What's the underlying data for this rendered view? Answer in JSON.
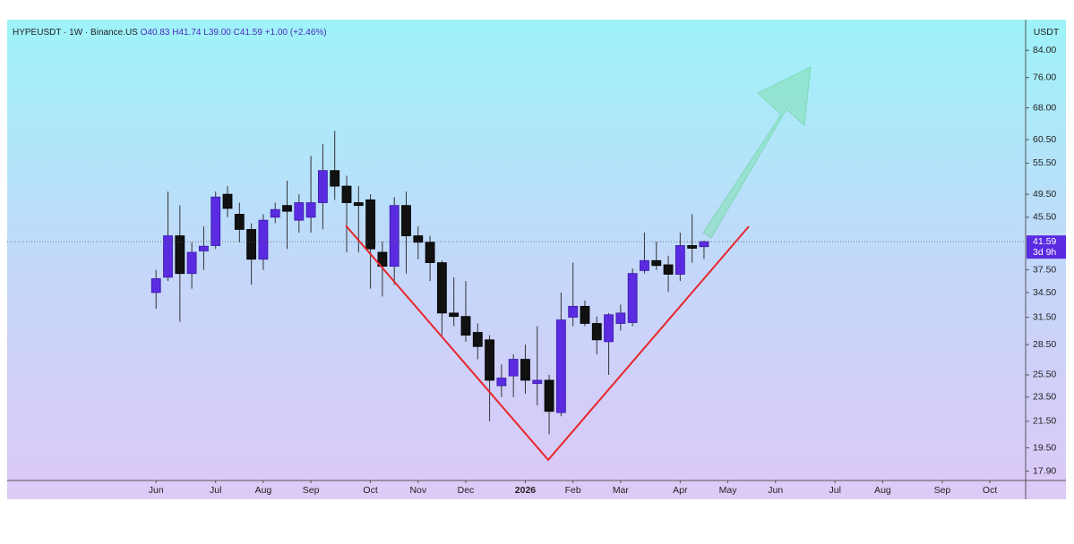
{
  "chart_data": {
    "type": "candlestick",
    "header": {
      "symbol": "HYPEUSDT · 1W · Binance.US",
      "open": "O40.83",
      "high": "H41.74",
      "low": "L39.00",
      "close": "C41.59",
      "change": "+1.00 (+2.46%)"
    },
    "y_axis_label": "USDT",
    "log_scale": true,
    "up_color": "#5a2be0",
    "down_color": "#111111",
    "ylim": [
      17.3,
      94
    ],
    "yticks": [
      {
        "value": 84,
        "label": "84.00"
      },
      {
        "value": 76,
        "label": "76.00"
      },
      {
        "value": 68,
        "label": "68.00"
      },
      {
        "value": 60.5,
        "label": "60.50"
      },
      {
        "value": 55.5,
        "label": "55.50"
      },
      {
        "value": 49.5,
        "label": "49.50"
      },
      {
        "value": 45.5,
        "label": "45.50"
      },
      {
        "value": 37.5,
        "label": "37.50"
      },
      {
        "value": 34.5,
        "label": "34.50"
      },
      {
        "value": 31.5,
        "label": "31.50"
      },
      {
        "value": 28.5,
        "label": "28.50"
      },
      {
        "value": 25.5,
        "label": "25.50"
      },
      {
        "value": 23.5,
        "label": "23.50"
      },
      {
        "value": 21.5,
        "label": "21.50"
      },
      {
        "value": 19.5,
        "label": "19.50"
      },
      {
        "value": 17.9,
        "label": "17.90"
      }
    ],
    "last_price": {
      "value": 41.59,
      "label": "41.59",
      "countdown": "3d 9h"
    },
    "xlim": [
      -12.5,
      73
    ],
    "xticks": [
      {
        "value": 0,
        "label": "Jun"
      },
      {
        "value": 5,
        "label": "Jul"
      },
      {
        "value": 9,
        "label": "Aug"
      },
      {
        "value": 13,
        "label": "Sep"
      },
      {
        "value": 18,
        "label": "Oct"
      },
      {
        "value": 22,
        "label": "Nov"
      },
      {
        "value": 26,
        "label": "Dec"
      },
      {
        "value": 31,
        "label": "2026"
      },
      {
        "value": 35,
        "label": "Feb"
      },
      {
        "value": 39,
        "label": "Mar"
      },
      {
        "value": 44,
        "label": "Apr"
      },
      {
        "value": 48,
        "label": "May"
      },
      {
        "value": 52,
        "label": "Jun"
      },
      {
        "value": 57,
        "label": "Jul"
      },
      {
        "value": 61,
        "label": "Aug"
      },
      {
        "value": 66,
        "label": "Sep"
      },
      {
        "value": 70,
        "label": "Oct"
      }
    ],
    "open": [
      34.5,
      36.5,
      42.5,
      37,
      40.2,
      41,
      49.5,
      46,
      43.5,
      39,
      45.5,
      47.5,
      45,
      45.5,
      48,
      54,
      51,
      48,
      48.5,
      40,
      38,
      47.5,
      42.5,
      41.5,
      38.5,
      32,
      31.6,
      29.8,
      29,
      24.5,
      25.4,
      27,
      24.7,
      25,
      22.2,
      31.5,
      32.8,
      30.8,
      28.8,
      30.8,
      30.9,
      37.4,
      38.8,
      38.2,
      36.9,
      41,
      40.83
    ],
    "high": [
      37.5,
      50,
      47.5,
      41.5,
      44,
      50,
      51,
      48,
      44.5,
      46,
      48,
      52,
      49.5,
      57,
      59.5,
      62.5,
      53,
      51,
      49.5,
      41.6,
      49,
      50,
      44,
      42.5,
      38.8,
      36.5,
      36,
      30.8,
      29.5,
      26.5,
      27.5,
      28.5,
      30.5,
      25.5,
      34.5,
      38.5,
      33.5,
      31.6,
      32,
      33,
      37.7,
      43,
      41.6,
      39.5,
      43,
      46,
      41.74
    ],
    "low": [
      32.5,
      36,
      31,
      35,
      37.5,
      40.5,
      45.5,
      41.5,
      35.5,
      37.5,
      44.5,
      40.5,
      43,
      43,
      43.5,
      48.5,
      40,
      40,
      35,
      34,
      35.5,
      37,
      39,
      36,
      29.5,
      30.5,
      28.8,
      27,
      21.5,
      23.5,
      23.5,
      23.8,
      22.8,
      20.5,
      21.9,
      30.5,
      30.5,
      27.5,
      25.5,
      30,
      30.5,
      37,
      37.5,
      34.6,
      36,
      38.5,
      39.0
    ],
    "close": [
      36.3,
      42.5,
      37,
      40,
      40.9,
      49,
      47,
      43.5,
      39,
      45,
      46.8,
      46.5,
      48,
      48,
      54,
      51,
      48,
      47.5,
      40.5,
      38,
      47.5,
      42.5,
      41.5,
      38.5,
      32,
      31.6,
      29.5,
      28.3,
      25,
      25.2,
      27,
      25,
      25,
      22.3,
      31.2,
      32.8,
      30.8,
      29,
      31.8,
      32,
      37,
      38.8,
      38.1,
      36.9,
      41,
      40.6,
      41.59
    ]
  }
}
